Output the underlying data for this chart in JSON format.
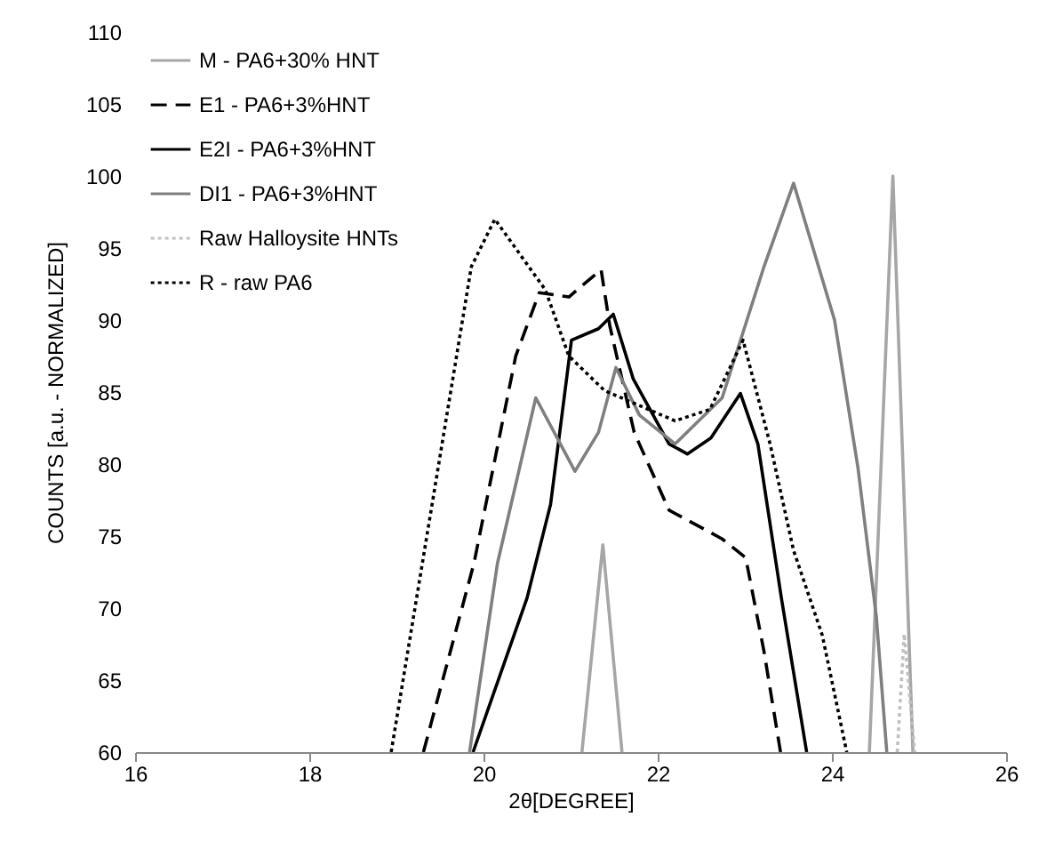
{
  "chart_data": {
    "type": "line",
    "xlabel": "2θ[DEGREE]",
    "ylabel": "COUNTS [a.u. - NORMALIZED]",
    "xlim": [
      16,
      26
    ],
    "xticks": [
      16,
      18,
      20,
      22,
      24,
      26
    ],
    "ylim": [
      60,
      110
    ],
    "yticks": [
      60,
      65,
      70,
      75,
      80,
      85,
      90,
      95,
      100,
      105,
      110
    ],
    "grid": false,
    "legend": "top left",
    "marker": "none",
    "series": [
      {
        "name": "M - PA6+30% HNT",
        "color": "#a6a6a6",
        "line_style": "solid",
        "x": [
          21.13,
          21.37,
          21.59,
          23.0,
          24.43,
          24.7,
          24.93
        ],
        "values": [
          60,
          74.4,
          60,
          null,
          60,
          100,
          60
        ]
      },
      {
        "name": "E1 - PA6+3%HNT",
        "color": "#000000",
        "line_style": "dashed",
        "x": [
          19.31,
          19.89,
          20.37,
          20.64,
          20.98,
          21.35,
          21.45,
          21.73,
          22.13,
          22.74,
          23.01,
          23.22,
          23.41
        ],
        "values": [
          60,
          73.1,
          87.5,
          91.9,
          91.6,
          93.5,
          89.6,
          82.2,
          76.8,
          74.8,
          73.5,
          67,
          60
        ]
      },
      {
        "name": "E2I - PA6+3%HNT",
        "color": "#000000",
        "line_style": "solid",
        "x": [
          19.88,
          20.5,
          20.77,
          21.01,
          21.32,
          21.49,
          21.72,
          22.13,
          22.34,
          22.61,
          22.95,
          23.15,
          23.42,
          23.71
        ],
        "values": [
          60,
          70.7,
          77.2,
          88.6,
          89.4,
          90.4,
          85.9,
          81.4,
          80.7,
          81.8,
          84.9,
          81.4,
          70.7,
          60
        ]
      },
      {
        "name": "DI1 - PA6+3%HNT",
        "color": "#7f7f7f",
        "line_style": "solid",
        "x": [
          19.84,
          20.16,
          20.6,
          21.05,
          21.32,
          21.52,
          21.79,
          22.2,
          22.74,
          23.22,
          23.56,
          24.03,
          24.3,
          24.51,
          24.63
        ],
        "values": [
          60,
          73.1,
          84.6,
          79.5,
          82.2,
          86.7,
          83.4,
          81.4,
          84.6,
          93.7,
          99.5,
          90,
          79.7,
          69.4,
          60
        ]
      },
      {
        "name": "Raw Halloysite HNTs",
        "color": "#c0c0c0",
        "line_style": "dotted",
        "x": [
          24.75,
          24.83,
          24.95
        ],
        "values": [
          60,
          68.2,
          60
        ]
      },
      {
        "name": "R - raw PA6",
        "color": "#000000",
        "line_style": "dotted",
        "x": [
          18.94,
          19.86,
          20.13,
          20.71,
          20.98,
          21.39,
          22.2,
          22.6,
          22.98,
          23.29,
          23.56,
          23.89,
          24.17
        ],
        "values": [
          60,
          93.7,
          97,
          92.1,
          87.5,
          85.1,
          83.0,
          83.8,
          88.6,
          81.4,
          74,
          68.1,
          60
        ]
      }
    ]
  }
}
